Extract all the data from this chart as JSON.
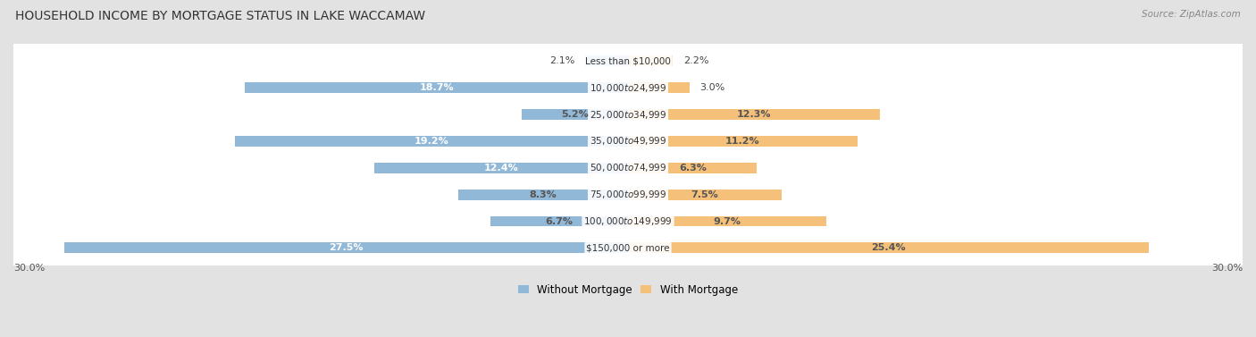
{
  "title": "HOUSEHOLD INCOME BY MORTGAGE STATUS IN LAKE WACCAMAW",
  "source": "Source: ZipAtlas.com",
  "categories": [
    "Less than $10,000",
    "$10,000 to $24,999",
    "$25,000 to $34,999",
    "$35,000 to $49,999",
    "$50,000 to $74,999",
    "$75,000 to $99,999",
    "$100,000 to $149,999",
    "$150,000 or more"
  ],
  "without_mortgage": [
    2.1,
    18.7,
    5.2,
    19.2,
    12.4,
    8.3,
    6.7,
    27.5
  ],
  "with_mortgage": [
    2.2,
    3.0,
    12.3,
    11.2,
    6.3,
    7.5,
    9.7,
    25.4
  ],
  "color_without": "#92b8d8",
  "color_with": "#f5c07a",
  "bg_color": "#e2e2e2",
  "row_bg_light": "#f5f5f5",
  "row_bg_dark": "#ebebeb",
  "axis_max": 30.0,
  "title_fontsize": 10,
  "label_fontsize": 8,
  "category_fontsize": 7.5,
  "legend_fontsize": 8.5
}
